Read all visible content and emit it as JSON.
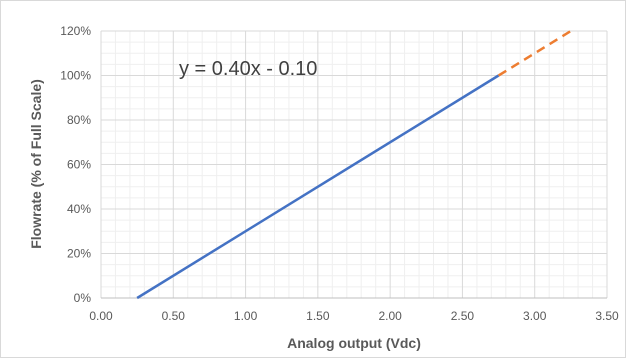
{
  "chart_data": {
    "type": "line",
    "title": "",
    "xlabel": "Analog output (Vdc)",
    "ylabel": "Flowrate (% of Full Scale)",
    "xlim": [
      0,
      3.5
    ],
    "ylim": [
      0,
      120
    ],
    "x_ticks": [
      "0.00",
      "0.50",
      "1.00",
      "1.50",
      "2.00",
      "2.50",
      "3.00",
      "3.50"
    ],
    "y_ticks": [
      "0%",
      "20%",
      "40%",
      "60%",
      "80%",
      "100%",
      "120%"
    ],
    "grid": true,
    "minor_grid": true,
    "annotation": "y = 0.40x - 0.10",
    "series": [
      {
        "style": "solid",
        "color": "#4472c4",
        "x": [
          0.25,
          2.75
        ],
        "y": [
          0,
          100
        ]
      },
      {
        "style": "dashed",
        "color": "#ed7d31",
        "x": [
          2.75,
          3.25
        ],
        "y": [
          100,
          120
        ]
      }
    ]
  }
}
